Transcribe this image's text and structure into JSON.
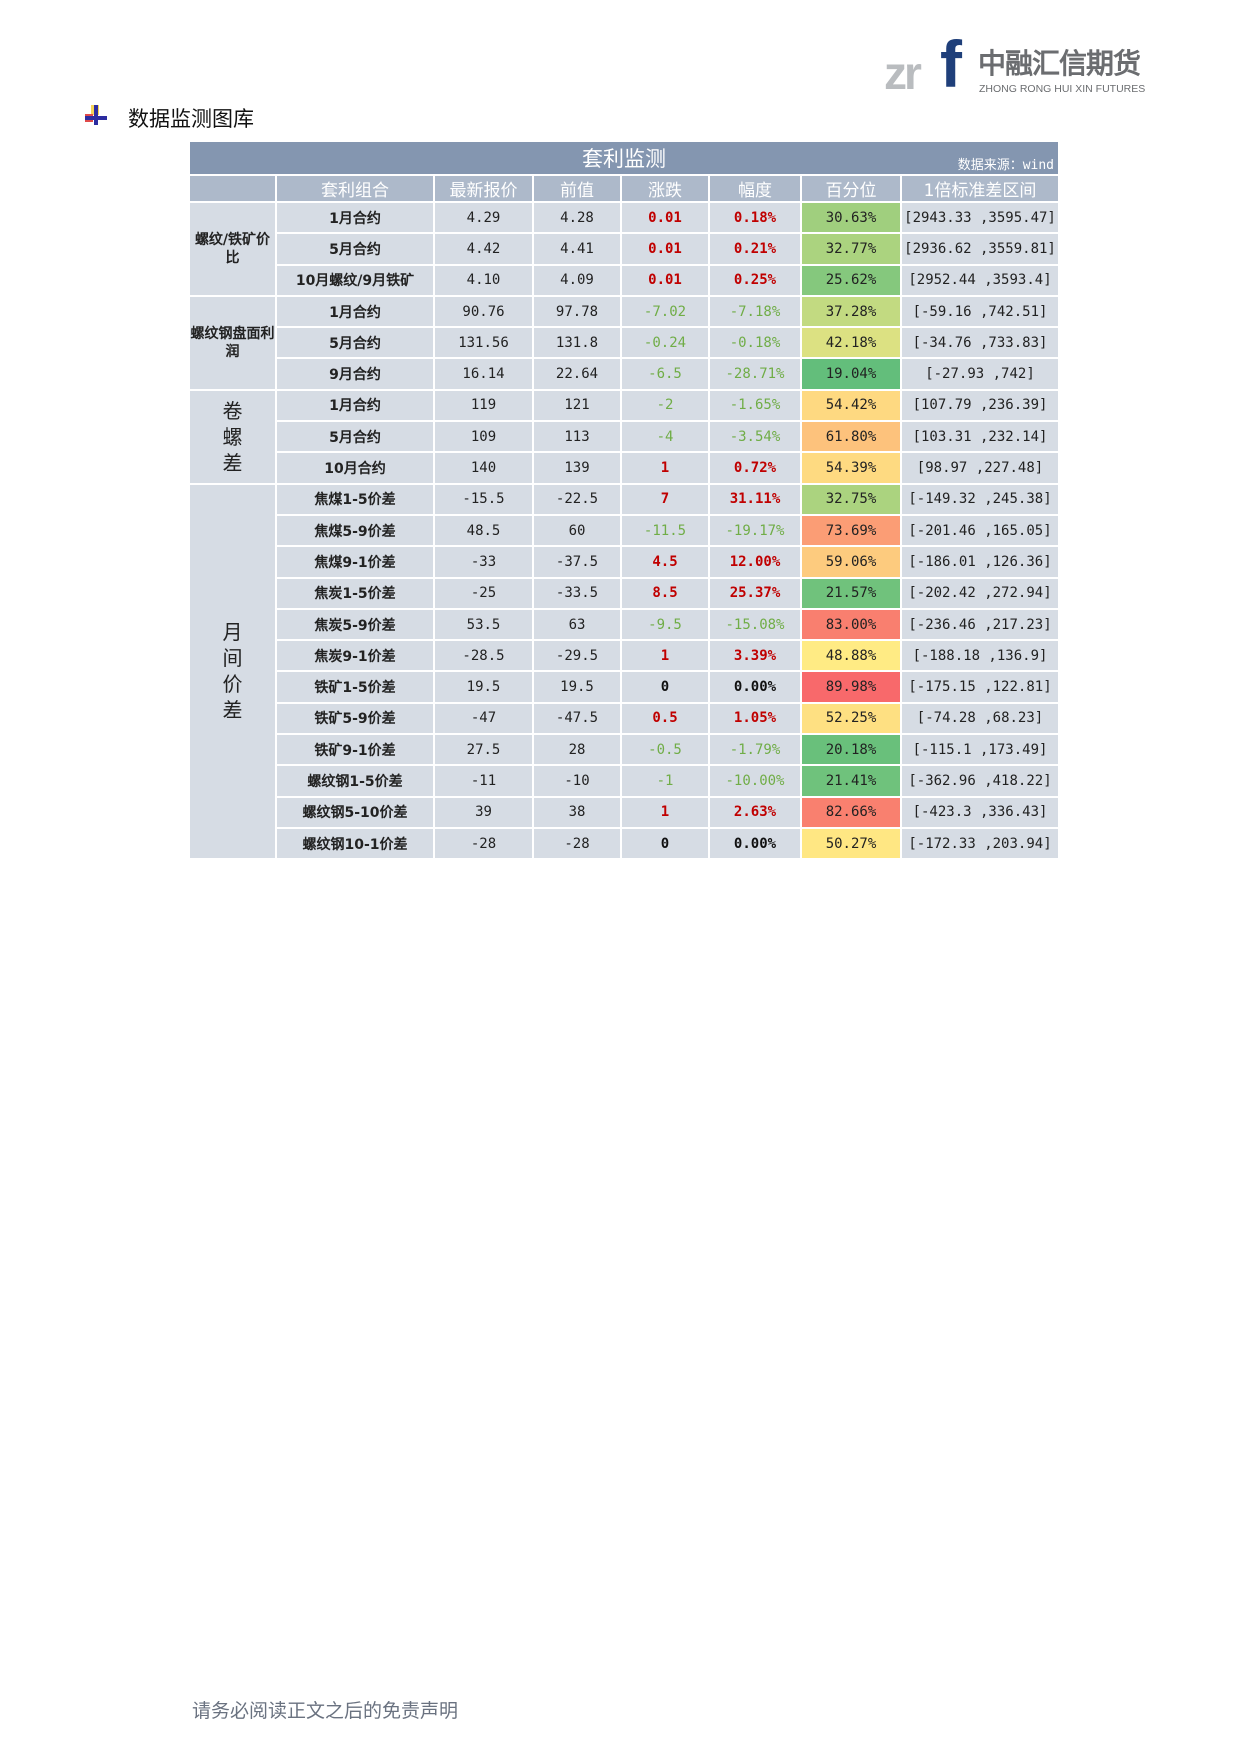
{
  "logo": {
    "mark": "zrf",
    "cn": "中融汇信期货",
    "en": "ZHONG RONG HUI XIN FUTURES"
  },
  "section": {
    "icon": "plus-bullet-icon",
    "title": "数据监测图库"
  },
  "table": {
    "title": "套利监测",
    "source": "数据来源：wind",
    "headers": [
      "",
      "套利组合",
      "最新报价",
      "前值",
      "涨跌",
      "幅度",
      "百分位",
      "1倍标准差区间"
    ],
    "colors": {
      "up": "#c00000",
      "down": "#70ad47",
      "header_bg": "#8496b0",
      "cell_bg": "#d6dce4",
      "scale_low": "#63be7b",
      "scale_mid": "#ffeb84",
      "scale_high": "#f8696b"
    },
    "groups": [
      {
        "label": "螺纹/铁矿价比",
        "rows": [
          {
            "name": "1月合约",
            "latest": "4.29",
            "prev": "4.28",
            "change": "0.01",
            "pct": "0.18%",
            "percentile": "30.63%",
            "range": "[2943.33 ,3595.47]"
          },
          {
            "name": "5月合约",
            "latest": "4.42",
            "prev": "4.41",
            "change": "0.01",
            "pct": "0.21%",
            "percentile": "32.77%",
            "range": "[2936.62 ,3559.81]"
          },
          {
            "name": "10月螺纹/9月铁矿",
            "latest": "4.10",
            "prev": "4.09",
            "change": "0.01",
            "pct": "0.25%",
            "percentile": "25.62%",
            "range": "[2952.44 ,3593.4]"
          }
        ]
      },
      {
        "label": "螺纹钢盘面利润",
        "rows": [
          {
            "name": "1月合约",
            "latest": "90.76",
            "prev": "97.78",
            "change": "-7.02",
            "pct": "-7.18%",
            "percentile": "37.28%",
            "range": "[-59.16 ,742.51]"
          },
          {
            "name": "5月合约",
            "latest": "131.56",
            "prev": "131.8",
            "change": "-0.24",
            "pct": "-0.18%",
            "percentile": "42.18%",
            "range": "[-34.76 ,733.83]"
          },
          {
            "name": "9月合约",
            "latest": "16.14",
            "prev": "22.64",
            "change": "-6.5",
            "pct": "-28.71%",
            "percentile": "19.04%",
            "range": "[-27.93 ,742]"
          }
        ]
      },
      {
        "label": "卷螺差",
        "big": true,
        "rows": [
          {
            "name": "1月合约",
            "latest": "119",
            "prev": "121",
            "change": "-2",
            "pct": "-1.65%",
            "percentile": "54.42%",
            "range": "[107.79 ,236.39]"
          },
          {
            "name": "5月合约",
            "latest": "109",
            "prev": "113",
            "change": "-4",
            "pct": "-3.54%",
            "percentile": "61.80%",
            "range": "[103.31 ,232.14]"
          },
          {
            "name": "10月合约",
            "latest": "140",
            "prev": "139",
            "change": "1",
            "pct": "0.72%",
            "percentile": "54.39%",
            "range": "[98.97 ,227.48]"
          }
        ]
      },
      {
        "label": "月间价差",
        "big": true,
        "rows": [
          {
            "name": "焦煤1-5价差",
            "latest": "-15.5",
            "prev": "-22.5",
            "change": "7",
            "pct": "31.11%",
            "percentile": "32.75%",
            "range": "[-149.32 ,245.38]"
          },
          {
            "name": "焦煤5-9价差",
            "latest": "48.5",
            "prev": "60",
            "change": "-11.5",
            "pct": "-19.17%",
            "percentile": "73.69%",
            "range": "[-201.46 ,165.05]"
          },
          {
            "name": "焦煤9-1价差",
            "latest": "-33",
            "prev": "-37.5",
            "change": "4.5",
            "pct": "12.00%",
            "percentile": "59.06%",
            "range": "[-186.01 ,126.36]"
          },
          {
            "name": "焦炭1-5价差",
            "latest": "-25",
            "prev": "-33.5",
            "change": "8.5",
            "pct": "25.37%",
            "percentile": "21.57%",
            "range": "[-202.42 ,272.94]"
          },
          {
            "name": "焦炭5-9价差",
            "latest": "53.5",
            "prev": "63",
            "change": "-9.5",
            "pct": "-15.08%",
            "percentile": "83.00%",
            "range": "[-236.46 ,217.23]"
          },
          {
            "name": "焦炭9-1价差",
            "latest": "-28.5",
            "prev": "-29.5",
            "change": "1",
            "pct": "3.39%",
            "percentile": "48.88%",
            "range": "[-188.18 ,136.9]"
          },
          {
            "name": "铁矿1-5价差",
            "latest": "19.5",
            "prev": "19.5",
            "change": "0",
            "pct": "0.00%",
            "percentile": "89.98%",
            "range": "[-175.15 ,122.81]"
          },
          {
            "name": "铁矿5-9价差",
            "latest": "-47",
            "prev": "-47.5",
            "change": "0.5",
            "pct": "1.05%",
            "percentile": "52.25%",
            "range": "[-74.28 ,68.23]"
          },
          {
            "name": "铁矿9-1价差",
            "latest": "27.5",
            "prev": "28",
            "change": "-0.5",
            "pct": "-1.79%",
            "percentile": "20.18%",
            "range": "[-115.1 ,173.49]"
          },
          {
            "name": "螺纹钢1-5价差",
            "latest": "-11",
            "prev": "-10",
            "change": "-1",
            "pct": "-10.00%",
            "percentile": "21.41%",
            "range": "[-362.96 ,418.22]"
          },
          {
            "name": "螺纹钢5-10价差",
            "latest": "39",
            "prev": "38",
            "change": "1",
            "pct": "2.63%",
            "percentile": "82.66%",
            "range": "[-423.3 ,336.43]"
          },
          {
            "name": "螺纹钢10-1价差",
            "latest": "-28",
            "prev": "-28",
            "change": "0",
            "pct": "0.00%",
            "percentile": "50.27%",
            "range": "[-172.33 ,203.94]"
          }
        ]
      }
    ]
  },
  "footer": {
    "disclaimer": "请务必阅读正文之后的免责声明"
  }
}
